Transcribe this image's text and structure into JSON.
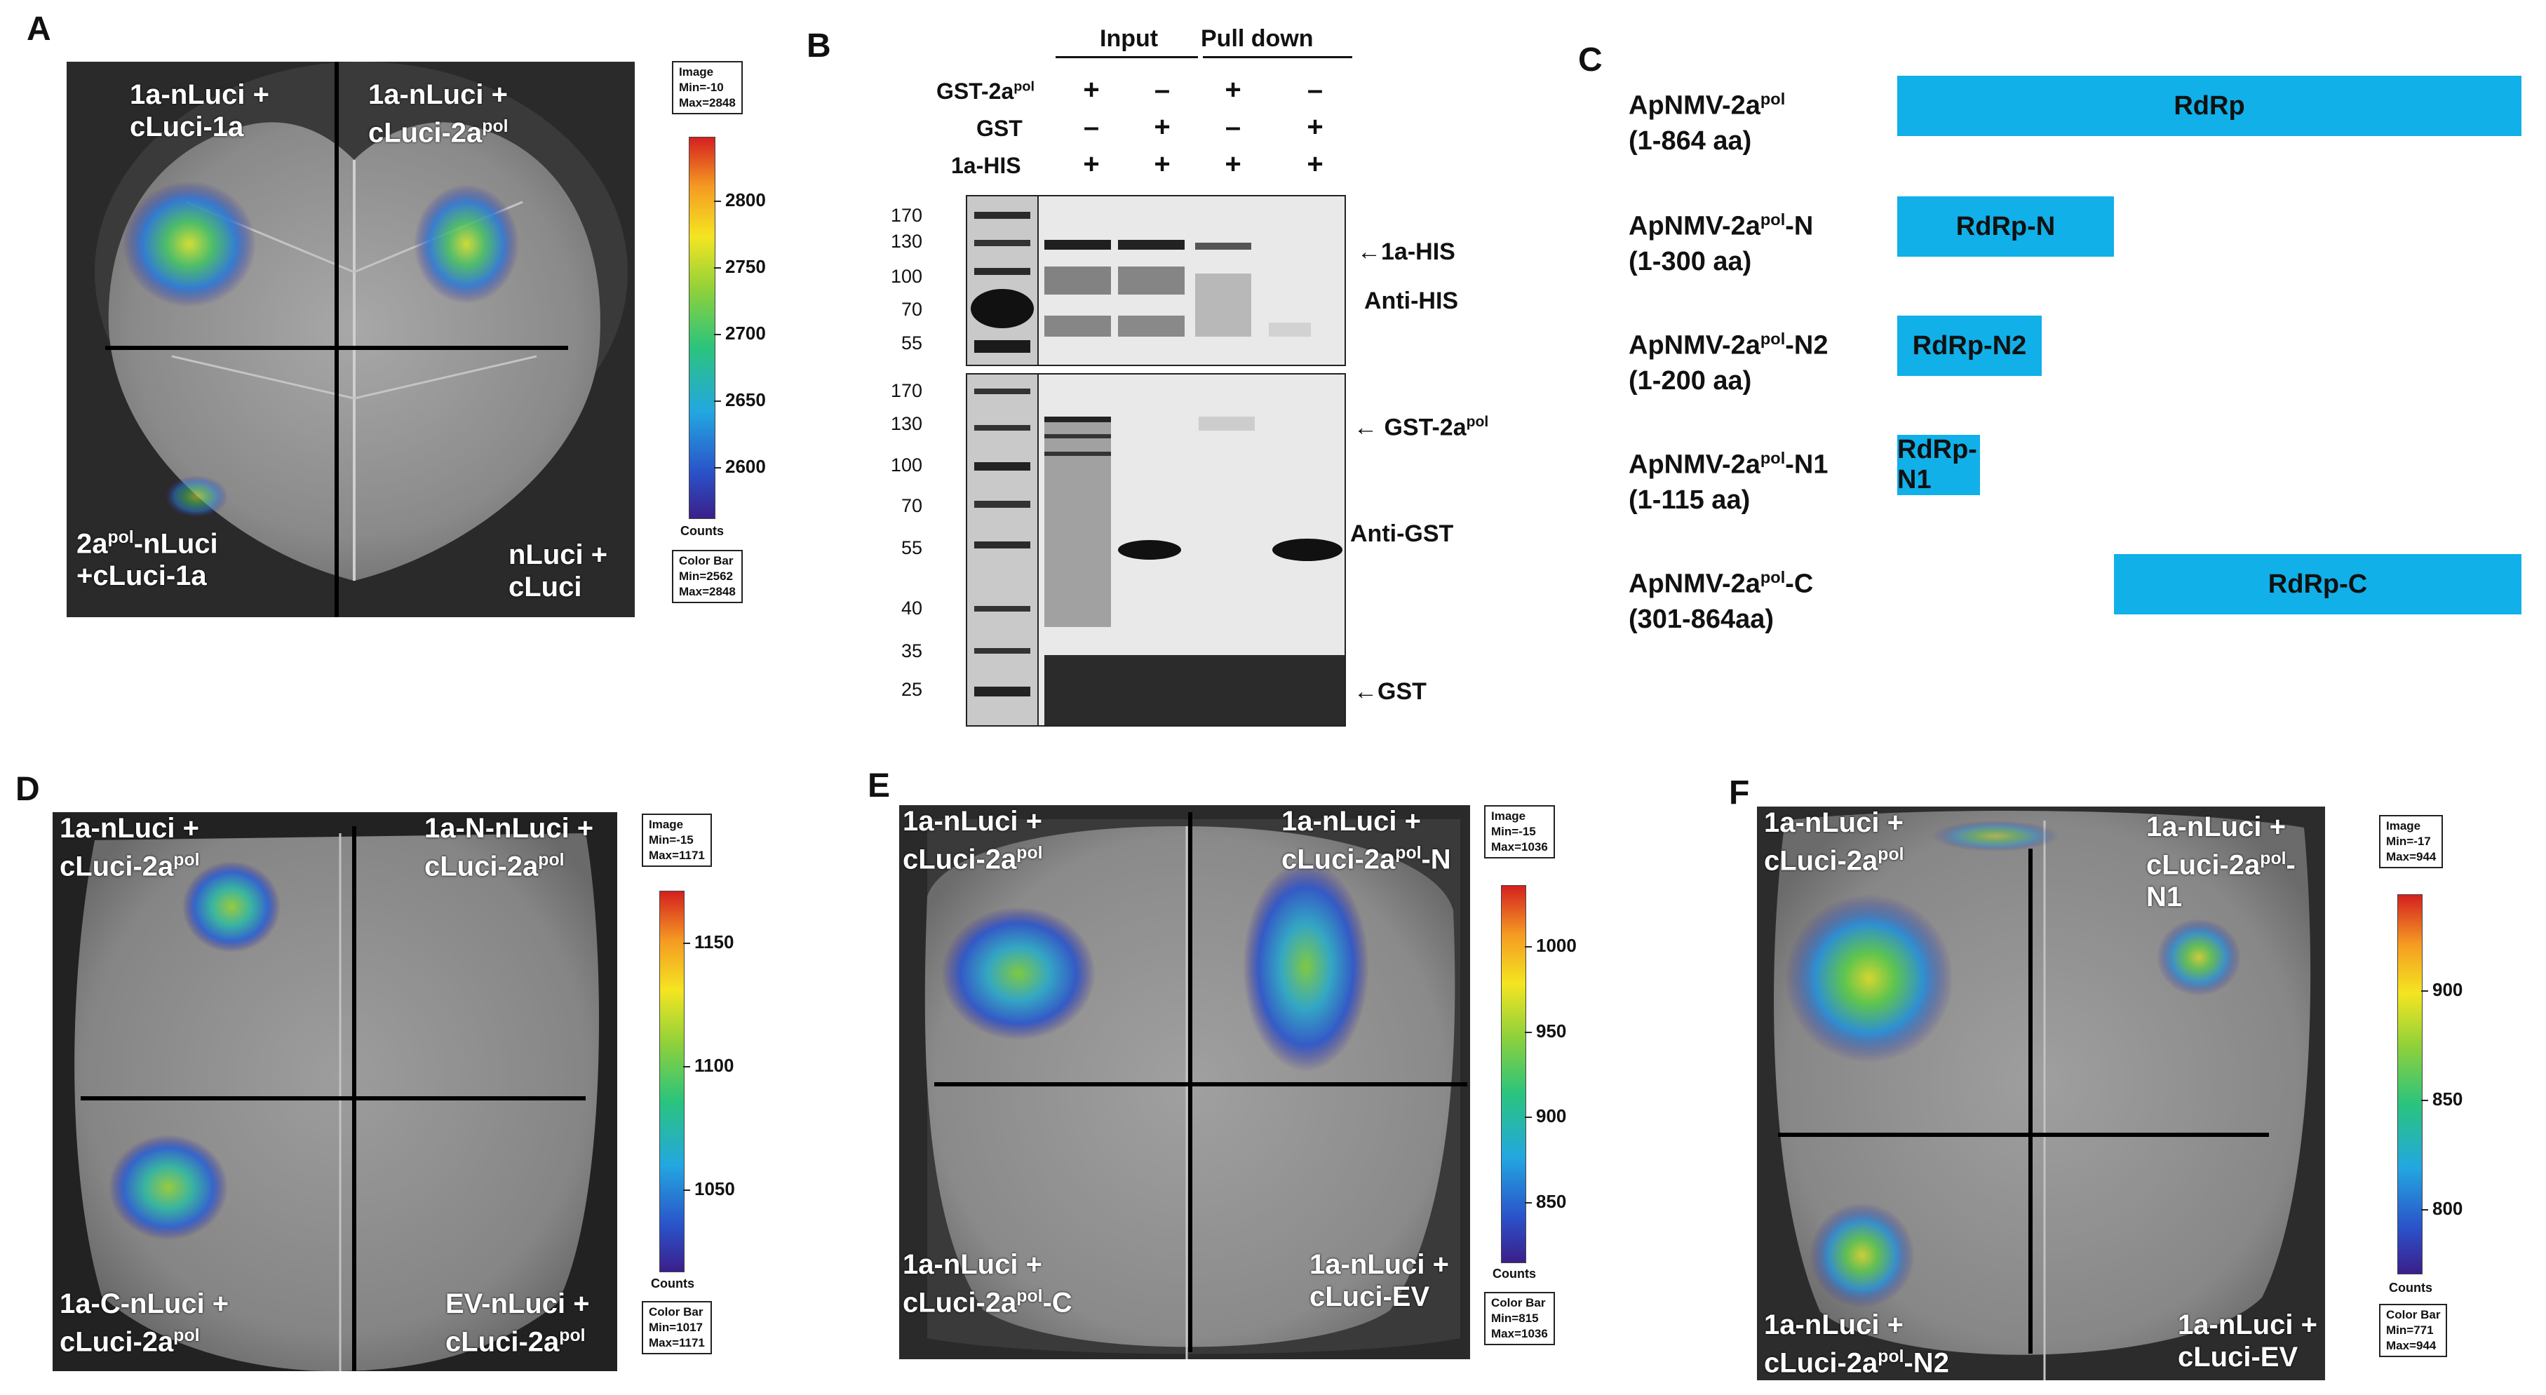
{
  "panels": {
    "A": {
      "label": "A",
      "quadrants": {
        "tl": "1a-nLuci +\ncLuci-1a",
        "tr_1": "1a-nLuci +\ncLuci-2a",
        "tr_sup": "pol",
        "bl_pre": "2a",
        "bl_sup": "pol",
        "bl_post": "-nLuci\n+cLuci-1a",
        "br": "nLuci +\ncLuci"
      },
      "image_box": "Image\nMin=-10\nMax=2848",
      "colorbar_box": "Color Bar\nMin=2562\nMax=2848",
      "counts": "Counts",
      "ticks": [
        "2800",
        "2750",
        "2700",
        "2650",
        "2600"
      ],
      "tick_values": [
        2800,
        2750,
        2700,
        2650,
        2600
      ],
      "range": [
        2562,
        2848
      ]
    },
    "B": {
      "label": "B",
      "headers": {
        "input": "Input",
        "pulldown": "Pull down"
      },
      "rows": [
        {
          "label": "GST-2a",
          "sup": "pol",
          "signs": [
            "+",
            "–",
            "+",
            "–"
          ]
        },
        {
          "label": "GST",
          "sup": "",
          "signs": [
            "–",
            "+",
            "–",
            "+"
          ]
        },
        {
          "label": "1a-HIS",
          "sup": "",
          "signs": [
            "+",
            "+",
            "+",
            "+"
          ]
        }
      ],
      "mw_top": [
        "170",
        "130",
        "100",
        "70",
        "55"
      ],
      "mw_bottom": [
        "170",
        "130",
        "100",
        "70",
        "55",
        "40",
        "35",
        "25"
      ],
      "annotations": {
        "his": "←1a-HIS",
        "anti_his": "Anti-HIS",
        "gst2a": "← GST-2a",
        "gst2a_sup": "pol",
        "anti_gst": "Anti-GST",
        "gst": "←GST"
      }
    },
    "C": {
      "label": "C",
      "constructs": [
        {
          "name": "ApNMV-2a",
          "sup": "pol",
          "suffix": "",
          "range": "(1-864 aa)",
          "domain": "RdRp",
          "start": 1,
          "end": 864
        },
        {
          "name": "ApNMV-2a",
          "sup": "pol",
          "suffix": "-N",
          "range": "(1-300 aa)",
          "domain": "RdRp-N",
          "start": 1,
          "end": 300
        },
        {
          "name": "ApNMV-2a",
          "sup": "pol",
          "suffix": "-N2",
          "range": "(1-200 aa)",
          "domain": "RdRp-N2",
          "start": 1,
          "end": 200
        },
        {
          "name": "ApNMV-2a",
          "sup": "pol",
          "suffix": "-N1",
          "range": "(1-115 aa)",
          "domain": "RdRp-N1",
          "start": 1,
          "end": 115
        },
        {
          "name": "ApNMV-2a",
          "sup": "pol",
          "suffix": "-C",
          "range": "(301-864aa)",
          "domain": "RdRp-C",
          "start": 301,
          "end": 864
        }
      ],
      "bar_color": "#11b0e8"
    },
    "D": {
      "label": "D",
      "quadrants": {
        "tl_1": "1a-nLuci +\ncLuci-2a",
        "tl_sup": "pol",
        "tr_1": "1a-N-nLuci +\ncLuci-2a",
        "tr_sup": "pol",
        "bl_1": "1a-C-nLuci +\ncLuci-2a",
        "bl_sup": "pol",
        "br_1": "EV-nLuci +\ncLuci-2a",
        "br_sup": "pol"
      },
      "image_box": "Image\nMin=-15\nMax=1171",
      "colorbar_box": "Color Bar\nMin=1017\nMax=1171",
      "counts": "Counts",
      "ticks": [
        "1150",
        "1100",
        "1050"
      ],
      "tick_values": [
        1150,
        1100,
        1050
      ],
      "range": [
        1017,
        1171
      ]
    },
    "E": {
      "label": "E",
      "quadrants": {
        "tl_1": "1a-nLuci +\ncLuci-2a",
        "tl_sup": "pol",
        "tr_1": "1a-nLuci +\ncLuci-2a",
        "tr_sup": "pol",
        "tr_post": "-N",
        "bl_1": "1a-nLuci +\ncLuci-2a",
        "bl_sup": "pol",
        "bl_post": "-C",
        "br": "1a-nLuci +\ncLuci-EV"
      },
      "image_box": "Image\nMin=-15\nMax=1036",
      "colorbar_box": "Color Bar\nMin=815\nMax=1036",
      "counts": "Counts",
      "ticks": [
        "1000",
        "950",
        "900",
        "850"
      ],
      "tick_values": [
        1000,
        950,
        900,
        850
      ],
      "range": [
        815,
        1036
      ]
    },
    "F": {
      "label": "F",
      "quadrants": {
        "tl_1": "1a-nLuci +\ncLuci-2a",
        "tl_sup": "pol",
        "tr_1": "1a-nLuci +\ncLuci-2a",
        "tr_sup": "pol",
        "tr_post": "-N1",
        "bl_1": "1a-nLuci +\ncLuci-2a",
        "bl_sup": "pol",
        "bl_post": "-N2",
        "br": "1a-nLuci +\ncLuci-EV"
      },
      "image_box": "Image\nMin=-17\nMax=944",
      "colorbar_box": "Color Bar\nMin=771\nMax=944",
      "counts": "Counts",
      "ticks": [
        "900",
        "850",
        "800"
      ],
      "tick_values": [
        900,
        850,
        800
      ],
      "range": [
        771,
        944
      ]
    }
  }
}
